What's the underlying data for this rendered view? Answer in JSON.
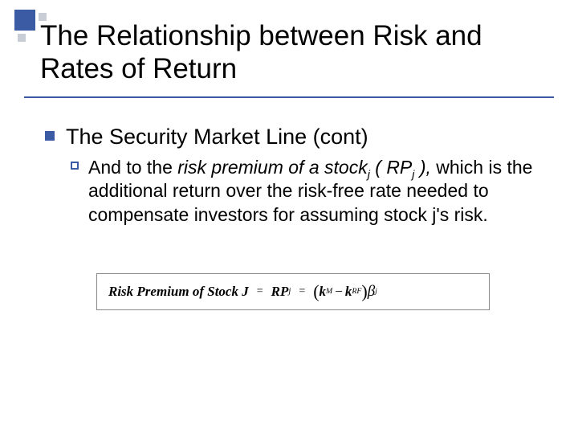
{
  "colors": {
    "accent": "#3b5ba5",
    "deco_light": "#c9cdd6",
    "background": "#ffffff",
    "text": "#000000",
    "box_border": "#888888"
  },
  "title": "The Relationship between Risk and Rates of Return",
  "level1": {
    "text": "The Security Market Line (cont)"
  },
  "level2": {
    "pre": "And to the ",
    "italic1": "risk premium of a stock",
    "sub1": "j",
    "italic2": " ( RP",
    "sub2": "j",
    "italic3": " ),",
    "post": " which is the additional return over the risk-free rate needed to compensate investors for assuming stock j's risk."
  },
  "formula": {
    "lhs": "Risk Premium of Stock J",
    "rp": "RP",
    "rp_sub": "j",
    "k": "k",
    "kM_sub": "M",
    "kRF_sub": "RF",
    "beta": "β",
    "beta_sub": "j"
  }
}
